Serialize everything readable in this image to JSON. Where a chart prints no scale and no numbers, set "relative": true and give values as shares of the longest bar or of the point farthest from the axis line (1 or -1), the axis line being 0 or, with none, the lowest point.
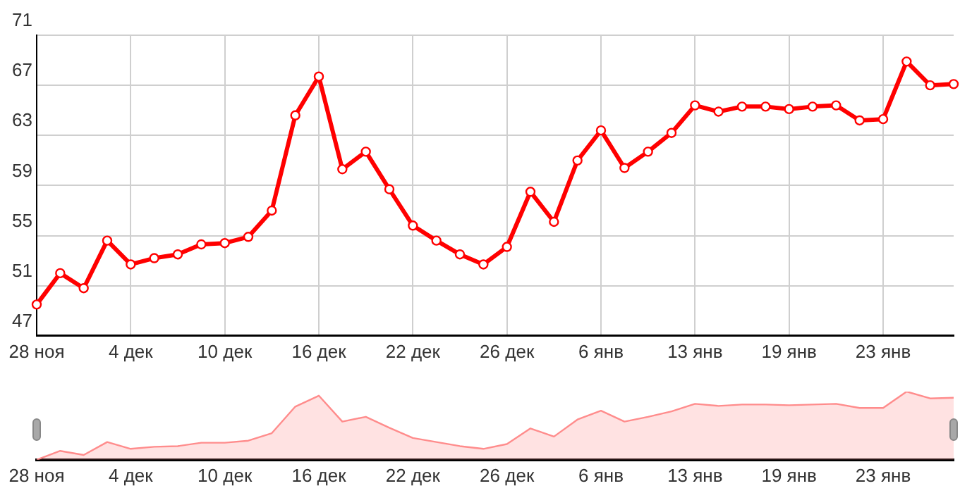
{
  "chart_data": [
    {
      "type": "line",
      "categories": [
        "28 ноя",
        null,
        null,
        null,
        "4 дек",
        null,
        null,
        null,
        "10 дек",
        null,
        null,
        null,
        "16 дек",
        null,
        null,
        null,
        "22 дек",
        null,
        null,
        null,
        "26 дек",
        null,
        null,
        null,
        "6 янв",
        null,
        null,
        null,
        "13 янв",
        null,
        null,
        null,
        "19 янв",
        null,
        null,
        null,
        "23 янв",
        null,
        null,
        null
      ],
      "series": [
        {
          "color": "#ff0000",
          "values": [
            49.5,
            52.0,
            50.8,
            54.6,
            52.7,
            53.2,
            53.5,
            54.3,
            54.4,
            54.9,
            57.0,
            64.6,
            67.7,
            60.3,
            61.7,
            58.7,
            55.8,
            54.6,
            53.5,
            52.7,
            54.1,
            58.5,
            56.1,
            61.0,
            63.4,
            60.4,
            61.7,
            63.2,
            65.4,
            64.9,
            65.3,
            65.3,
            65.1,
            65.3,
            65.4,
            64.2,
            64.3,
            68.9,
            67.0,
            67.1
          ]
        }
      ],
      "ylim": [
        47,
        71
      ],
      "yticks": [
        47,
        51,
        55,
        59,
        63,
        67,
        71
      ],
      "grid": true,
      "marker": "circle",
      "line_style": "solid"
    },
    {
      "type": "area",
      "relative": true,
      "categories": [
        "28 ноя",
        null,
        null,
        null,
        "4 дек",
        null,
        null,
        null,
        "10 дек",
        null,
        null,
        null,
        "16 дек",
        null,
        null,
        null,
        "22 дек",
        null,
        null,
        null,
        "26 дек",
        null,
        null,
        null,
        "6 янв",
        null,
        null,
        null,
        "13 янв",
        null,
        null,
        null,
        "19 янв",
        null,
        null,
        null,
        "23 янв",
        null,
        null,
        null
      ],
      "series": [
        {
          "color": "#ff8c8c",
          "values": [
            0,
            0.13,
            0.07,
            0.26,
            0.16,
            0.19,
            0.2,
            0.25,
            0.25,
            0.28,
            0.39,
            0.78,
            0.94,
            0.56,
            0.63,
            0.47,
            0.32,
            0.26,
            0.2,
            0.16,
            0.23,
            0.46,
            0.34,
            0.59,
            0.72,
            0.56,
            0.63,
            0.71,
            0.82,
            0.79,
            0.81,
            0.81,
            0.8,
            0.81,
            0.82,
            0.76,
            0.76,
            1,
            0.9,
            0.91
          ]
        }
      ],
      "marker": "none"
    }
  ]
}
